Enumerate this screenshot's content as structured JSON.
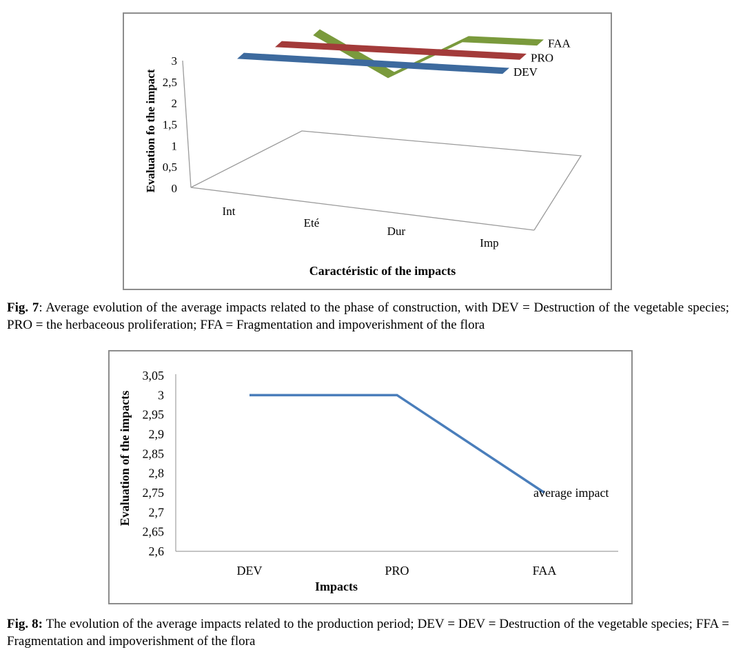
{
  "chart_data": [
    {
      "type": "line",
      "subtype": "3d-ribbon",
      "title": "",
      "xlabel": "Caractéristic of the impacts",
      "ylabel": "Evaluation fo the impact",
      "categories": [
        "Int",
        "Eté",
        "Dur",
        "Imp"
      ],
      "yticks": [
        "0",
        "0,5",
        "1",
        "1,5",
        "2",
        "2,5",
        "3"
      ],
      "ylim": [
        0,
        3
      ],
      "series": [
        {
          "name": "DEV",
          "values": [
            3,
            3,
            3,
            3
          ],
          "color": "#3d6a9e"
        },
        {
          "name": "PRO",
          "values": [
            3,
            3,
            3,
            3
          ],
          "color": "#a33b3a"
        },
        {
          "name": "FAA",
          "values": [
            3,
            2,
            3,
            3
          ],
          "color": "#7a9a3c"
        }
      ]
    },
    {
      "type": "line",
      "title": "",
      "xlabel": "Impacts",
      "ylabel": "Evaluation of the impacts",
      "categories": [
        "DEV",
        "PRO",
        "FAA"
      ],
      "yticks": [
        "2,6",
        "2,65",
        "2,7",
        "2,75",
        "2,8",
        "2,85",
        "2,9",
        "2,95",
        "3",
        "3,05"
      ],
      "ylim": [
        2.6,
        3.05
      ],
      "grid": false,
      "series": [
        {
          "name": "average impact",
          "values": [
            3,
            3,
            2.75
          ],
          "color": "#4a7ebb"
        }
      ],
      "annotation": "average impact"
    }
  ],
  "captions": {
    "fig7": {
      "label": "Fig. 7",
      "text": ": Average evolution of the average impacts related to the phase of construction, with DEV = Destruction of the vegetable species; PRO = the herbaceous proliferation; FFA = Fragmentation and impoverishment of the flora"
    },
    "fig8": {
      "label": "Fig. 8:",
      "text": " The evolution of the average impacts related to the production period; DEV = DEV = Destruction of the vegetable species; FFA = Fragmentation and impoverishment of the flora"
    }
  }
}
